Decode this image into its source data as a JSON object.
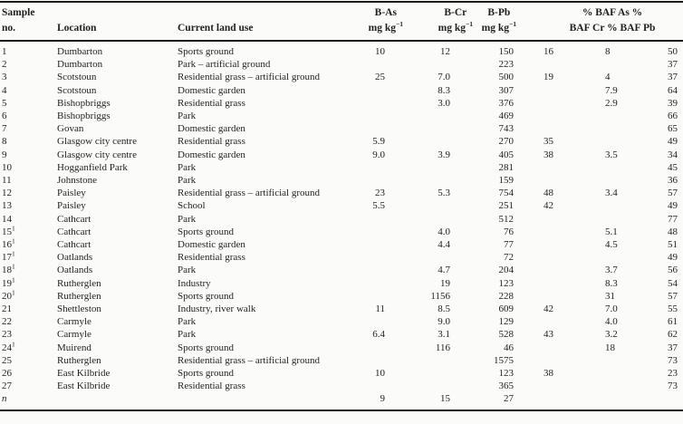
{
  "page": {
    "background": "#fbfbfa",
    "text_color": "#1f1f1f",
    "rule_color": "#1b1b1b"
  },
  "table": {
    "headers": {
      "sample_line1": "Sample",
      "sample_line2": "no.",
      "location": "Location",
      "land_use": "Current land use",
      "b_as_name": "B-As",
      "b_cr_name": "B-Cr",
      "b_pb_name": "B-Pb",
      "unit_base": "mg kg",
      "unit_sup": "−1",
      "baf_line1": "% BAF As %",
      "baf_line2": "BAF Cr % BAF Pb"
    },
    "rows": [
      {
        "no": "1",
        "sup": "",
        "location": "Dumbarton",
        "land_use": "Sports ground",
        "b_as": "10",
        "b_cr": "12",
        "b_pb": "150",
        "baf_as": "16",
        "baf_cr": "8",
        "baf_pb": "50"
      },
      {
        "no": "2",
        "sup": "",
        "location": "Dumbarton",
        "land_use": "Park – artificial ground",
        "b_as": "",
        "b_cr": "",
        "b_pb": "223",
        "baf_as": "",
        "baf_cr": "",
        "baf_pb": "37"
      },
      {
        "no": "3",
        "sup": "",
        "location": "Scotstoun",
        "land_use": "Residential grass – artificial ground",
        "b_as": "25",
        "b_cr": "7.0",
        "b_pb": "500",
        "baf_as": "19",
        "baf_cr": "4",
        "baf_pb": "37"
      },
      {
        "no": "4",
        "sup": "",
        "location": "Scotstoun",
        "land_use": "Domestic garden",
        "b_as": "",
        "b_cr": "8.3",
        "b_pb": "307",
        "baf_as": "",
        "baf_cr": "7.9",
        "baf_pb": "64"
      },
      {
        "no": "5",
        "sup": "",
        "location": "Bishopbriggs",
        "land_use": "Residential grass",
        "b_as": "",
        "b_cr": "3.0",
        "b_pb": "376",
        "baf_as": "",
        "baf_cr": "2.9",
        "baf_pb": "39"
      },
      {
        "no": "6",
        "sup": "",
        "location": "Bishopbriggs",
        "land_use": "Park",
        "b_as": "",
        "b_cr": "",
        "b_pb": "469",
        "baf_as": "",
        "baf_cr": "",
        "baf_pb": "66"
      },
      {
        "no": "7",
        "sup": "",
        "location": "Govan",
        "land_use": "Domestic garden",
        "b_as": "",
        "b_cr": "",
        "b_pb": "743",
        "baf_as": "",
        "baf_cr": "",
        "baf_pb": "65"
      },
      {
        "no": "8",
        "sup": "",
        "location": "Glasgow city centre",
        "land_use": "Residential grass",
        "b_as": "5.9",
        "b_cr": "",
        "b_pb": "270",
        "baf_as": "35",
        "baf_cr": "",
        "baf_pb": "49"
      },
      {
        "no": "9",
        "sup": "",
        "location": "Glasgow city centre",
        "land_use": "Domestic garden",
        "b_as": "9.0",
        "b_cr": "3.9",
        "b_pb": "405",
        "baf_as": "38",
        "baf_cr": "3.5",
        "baf_pb": "34"
      },
      {
        "no": "10",
        "sup": "",
        "location": "Hogganfield Park",
        "land_use": "Park",
        "b_as": "",
        "b_cr": "",
        "b_pb": "281",
        "baf_as": "",
        "baf_cr": "",
        "baf_pb": "45"
      },
      {
        "no": "11",
        "sup": "",
        "location": "Johnstone",
        "land_use": "Park",
        "b_as": "",
        "b_cr": "",
        "b_pb": "159",
        "baf_as": "",
        "baf_cr": "",
        "baf_pb": "36"
      },
      {
        "no": "12",
        "sup": "",
        "location": "Paisley",
        "land_use": "Residential grass – artificial ground",
        "b_as": "23",
        "b_cr": "5.3",
        "b_pb": "754",
        "baf_as": "48",
        "baf_cr": "3.4",
        "baf_pb": "57"
      },
      {
        "no": "13",
        "sup": "",
        "location": "Paisley",
        "land_use": "School",
        "b_as": "5.5",
        "b_cr": "",
        "b_pb": "251",
        "baf_as": "42",
        "baf_cr": "",
        "baf_pb": "49"
      },
      {
        "no": "14",
        "sup": "",
        "location": "Cathcart",
        "land_use": "Park",
        "b_as": "",
        "b_cr": "",
        "b_pb": "512",
        "baf_as": "",
        "baf_cr": "",
        "baf_pb": "77"
      },
      {
        "no": "15",
        "sup": "1",
        "location": "Cathcart",
        "land_use": "Sports ground",
        "b_as": "",
        "b_cr": "4.0",
        "b_pb": "76",
        "baf_as": "",
        "baf_cr": "5.1",
        "baf_pb": "48"
      },
      {
        "no": "16",
        "sup": "1",
        "location": "Cathcart",
        "land_use": "Domestic garden",
        "b_as": "",
        "b_cr": "4.4",
        "b_pb": "77",
        "baf_as": "",
        "baf_cr": "4.5",
        "baf_pb": "51"
      },
      {
        "no": "17",
        "sup": "1",
        "location": "Oatlands",
        "land_use": "Residential grass",
        "b_as": "",
        "b_cr": "",
        "b_pb": "72",
        "baf_as": "",
        "baf_cr": "",
        "baf_pb": "49"
      },
      {
        "no": "18",
        "sup": "1",
        "location": "Oatlands",
        "land_use": "Park",
        "b_as": "",
        "b_cr": "4.7",
        "b_pb": "204",
        "baf_as": "",
        "baf_cr": "3.7",
        "baf_pb": "56"
      },
      {
        "no": "19",
        "sup": "1",
        "location": "Rutherglen",
        "land_use": "Industry",
        "b_as": "",
        "b_cr": "19",
        "b_pb": "123",
        "baf_as": "",
        "baf_cr": "8.3",
        "baf_pb": "54"
      },
      {
        "no": "20",
        "sup": "1",
        "location": "Rutherglen",
        "land_use": "Sports ground",
        "b_as": "",
        "b_cr": "1156",
        "b_pb": "228",
        "baf_as": "",
        "baf_cr": "31",
        "baf_pb": "57"
      },
      {
        "no": "21",
        "sup": "",
        "location": "Shettleston",
        "land_use": "Industry, river walk",
        "b_as": "11",
        "b_cr": "8.5",
        "b_pb": "609",
        "baf_as": "42",
        "baf_cr": "7.0",
        "baf_pb": "55"
      },
      {
        "no": "22",
        "sup": "",
        "location": "Carmyle",
        "land_use": "Park",
        "b_as": "",
        "b_cr": "9.0",
        "b_pb": "129",
        "baf_as": "",
        "baf_cr": "4.0",
        "baf_pb": "61"
      },
      {
        "no": "23",
        "sup": "",
        "location": "Carmyle",
        "land_use": "Park",
        "b_as": "6.4",
        "b_cr": "3.1",
        "b_pb": "528",
        "baf_as": "43",
        "baf_cr": "3.2",
        "baf_pb": "62"
      },
      {
        "no": "24",
        "sup": "1",
        "location": "Muirend",
        "land_use": "Sports ground",
        "b_as": "",
        "b_cr": "116",
        "b_pb": "46",
        "baf_as": "",
        "baf_cr": "18",
        "baf_pb": "37"
      },
      {
        "no": "25",
        "sup": "",
        "location": "Rutherglen",
        "land_use": "Residential grass – artificial ground",
        "b_as": "",
        "b_cr": "",
        "b_pb": "1575",
        "baf_as": "",
        "baf_cr": "",
        "baf_pb": "73"
      },
      {
        "no": "26",
        "sup": "",
        "location": "East Kilbride",
        "land_use": "Sports ground",
        "b_as": "10",
        "b_cr": "",
        "b_pb": "123",
        "baf_as": "38",
        "baf_cr": "",
        "baf_pb": "23"
      },
      {
        "no": "27",
        "sup": "",
        "location": "East Kilbride",
        "land_use": "Residential grass",
        "b_as": "",
        "b_cr": "",
        "b_pb": "365",
        "baf_as": "",
        "baf_cr": "",
        "baf_pb": "73"
      },
      {
        "no": "n",
        "sup": "",
        "em": true,
        "location": "",
        "land_use": "",
        "b_as": "9",
        "b_cr": "15",
        "b_pb": "27",
        "baf_as": "",
        "baf_cr": "",
        "baf_pb": ""
      }
    ]
  }
}
